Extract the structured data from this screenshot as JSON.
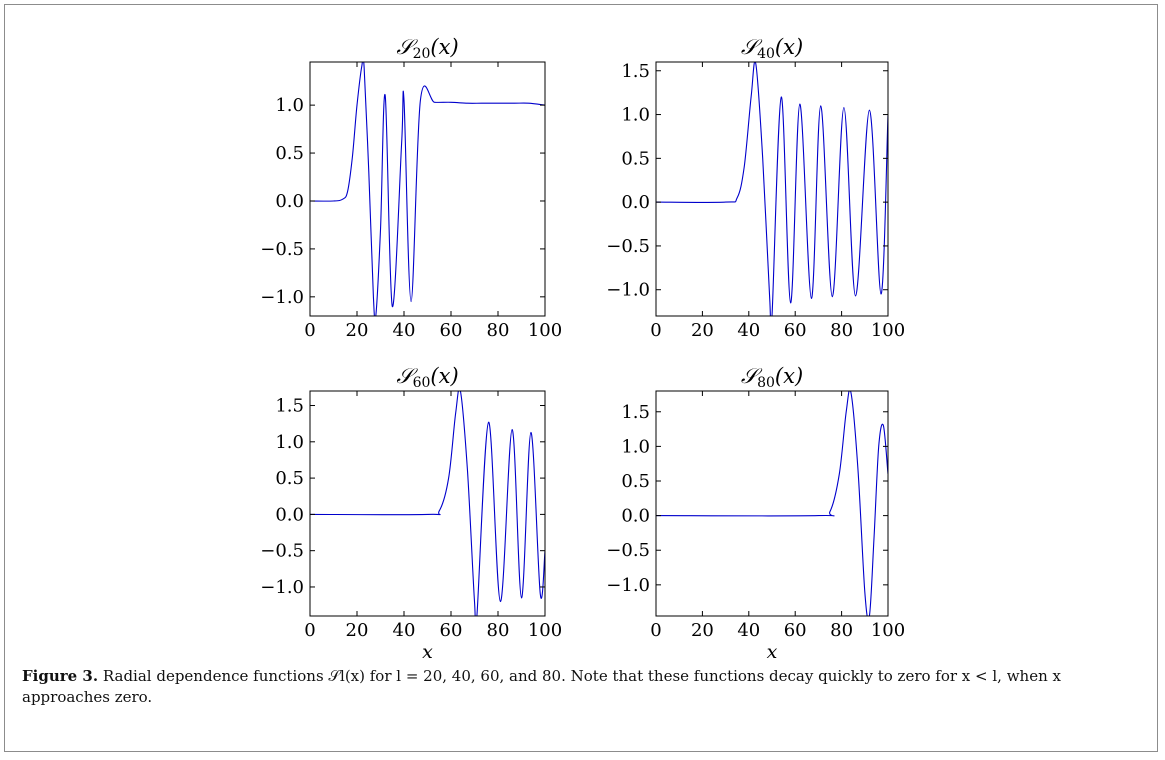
{
  "figure": {
    "caption_label": "Figure 3.",
    "caption_text": "Radial dependence functions 𝒮l(x) for l = 20, 40, 60, and 80. Note that these functions decay quickly to zero for x < l, when x approaches zero."
  },
  "chart_data": [
    {
      "type": "line",
      "title": "𝒮20(x)",
      "title_main": "𝒮",
      "title_sub": "20",
      "title_arg": "(x)",
      "xlabel": "",
      "ylabel": "",
      "l": 20,
      "xlim": [
        0,
        100
      ],
      "ylim": [
        -1.2,
        1.45
      ],
      "xticks": [
        0,
        20,
        40,
        60,
        80,
        100
      ],
      "yticks": [
        -1.0,
        -0.5,
        0.0,
        0.5,
        1.0
      ],
      "ytick_labels": [
        "−1.0",
        "−0.5",
        "0.0",
        "0.5",
        "1.0"
      ],
      "series": [
        {
          "color": "#0000cc",
          "x": [
            0,
            10,
            14,
            16,
            18,
            20,
            22,
            23,
            25,
            27,
            28,
            30,
            32,
            35,
            39,
            40,
            43,
            47,
            53,
            60,
            67,
            73,
            80,
            87,
            93,
            100
          ],
          "y": [
            0,
            0,
            0.02,
            0.1,
            0.45,
            1.0,
            1.4,
            1.4,
            0.3,
            -1.0,
            -1.2,
            -0.3,
            1.1,
            -1.1,
            0.6,
            1.05,
            -1.05,
            1.05,
            1.03,
            1.03,
            1.02,
            1.02,
            1.02,
            1.02,
            1.02,
            1.0
          ]
        }
      ]
    },
    {
      "type": "line",
      "title": "𝒮40(x)",
      "title_main": "𝒮",
      "title_sub": "40",
      "title_arg": "(x)",
      "xlabel": "",
      "ylabel": "",
      "l": 40,
      "xlim": [
        0,
        100
      ],
      "ylim": [
        -1.3,
        1.6
      ],
      "xticks": [
        0,
        20,
        40,
        60,
        80,
        100
      ],
      "yticks": [
        -1.0,
        -0.5,
        0.0,
        0.5,
        1.0,
        1.5
      ],
      "ytick_labels": [
        "−1.0",
        "−0.5",
        "0.0",
        "0.5",
        "1.0",
        "1.5"
      ],
      "series": [
        {
          "color": "#0000cc",
          "x": [
            0,
            30,
            35,
            38,
            41,
            43,
            46,
            49,
            50,
            54,
            58,
            62,
            67,
            71,
            76,
            81,
            86,
            92,
            97,
            100
          ],
          "y": [
            0,
            0,
            0.05,
            0.4,
            1.2,
            1.58,
            0.5,
            -1.1,
            -1.3,
            1.2,
            -1.15,
            1.12,
            -1.1,
            1.1,
            -1.08,
            1.08,
            -1.07,
            1.05,
            -1.05,
            1.0
          ]
        }
      ]
    },
    {
      "type": "line",
      "title": "𝒮60(x)",
      "title_main": "𝒮",
      "title_sub": "60",
      "title_arg": "(x)",
      "xlabel": "x",
      "ylabel": "",
      "l": 60,
      "xlim": [
        0,
        100
      ],
      "ylim": [
        -1.4,
        1.7
      ],
      "xticks": [
        0,
        20,
        40,
        60,
        80,
        100
      ],
      "yticks": [
        -1.0,
        -0.5,
        0.0,
        0.5,
        1.0,
        1.5
      ],
      "ytick_labels": [
        "−1.0",
        "−0.5",
        "0.0",
        "0.5",
        "1.0",
        "1.5"
      ],
      "series": [
        {
          "color": "#0000cc",
          "x": [
            0,
            50,
            55,
            59,
            62,
            64,
            67,
            70,
            71,
            76,
            81,
            86,
            90,
            94,
            98,
            100
          ],
          "y": [
            0,
            0,
            0.05,
            0.5,
            1.4,
            1.7,
            0.6,
            -1.2,
            -1.4,
            1.27,
            -1.2,
            1.17,
            -1.15,
            1.13,
            -1.1,
            -0.5
          ]
        }
      ]
    },
    {
      "type": "line",
      "title": "𝒮80(x)",
      "title_main": "𝒮",
      "title_sub": "80",
      "title_arg": "(x)",
      "xlabel": "x",
      "ylabel": "",
      "l": 80,
      "xlim": [
        0,
        100
      ],
      "ylim": [
        -1.45,
        1.8
      ],
      "xticks": [
        0,
        20,
        40,
        60,
        80,
        100
      ],
      "yticks": [
        -1.0,
        -0.5,
        0.0,
        0.5,
        1.0,
        1.5
      ],
      "ytick_labels": [
        "−1.0",
        "−0.5",
        "0.0",
        "0.5",
        "1.0",
        "1.5"
      ],
      "series": [
        {
          "color": "#0000cc",
          "x": [
            0,
            70,
            75,
            79,
            82,
            84,
            87,
            90,
            92,
            94,
            96,
            98,
            100
          ],
          "y": [
            0,
            0,
            0.06,
            0.6,
            1.5,
            1.78,
            0.7,
            -1.1,
            -1.45,
            -0.3,
            1.0,
            1.3,
            0.6
          ]
        }
      ]
    }
  ]
}
